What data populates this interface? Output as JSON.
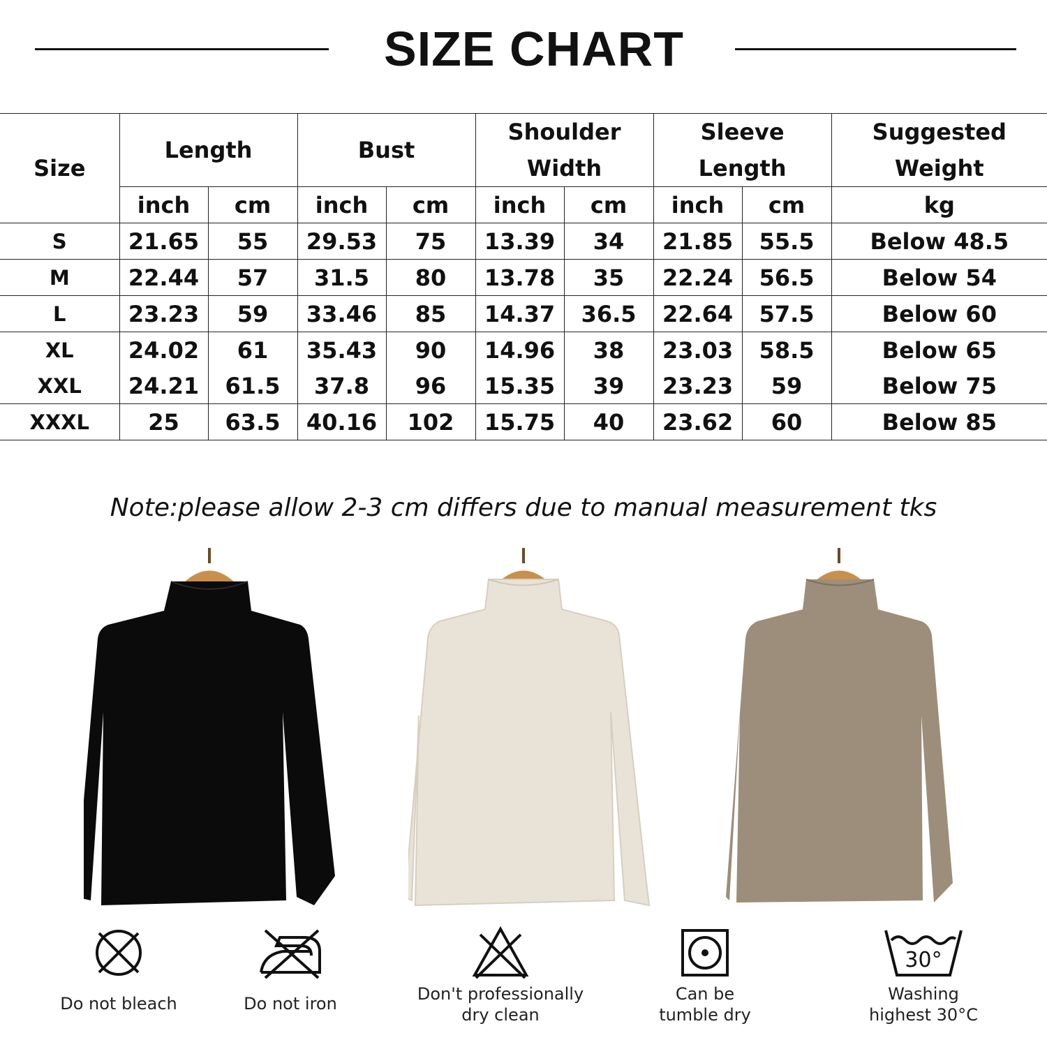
{
  "title": "SIZE CHART",
  "table": {
    "headers": {
      "size": "Size",
      "groups": [
        {
          "label": "Length",
          "units": [
            "inch",
            "cm"
          ]
        },
        {
          "label": "Bust",
          "units": [
            "inch",
            "cm"
          ]
        },
        {
          "label": "Shoulder\nWidth",
          "units": [
            "inch",
            "cm"
          ]
        },
        {
          "label": "Sleeve\nLength",
          "units": [
            "inch",
            "cm"
          ]
        }
      ],
      "weight": "Suggested\nWeight",
      "weight_unit": "kg"
    },
    "rows": [
      {
        "size": "S",
        "length_in": "21.65",
        "length_cm": "55",
        "bust_in": "29.53",
        "bust_cm": "75",
        "shoulder_in": "13.39",
        "shoulder_cm": "34",
        "sleeve_in": "21.85",
        "sleeve_cm": "55.5",
        "weight": "Below 48.5"
      },
      {
        "size": "M",
        "length_in": "22.44",
        "length_cm": "57",
        "bust_in": "31.5",
        "bust_cm": "80",
        "shoulder_in": "13.78",
        "shoulder_cm": "35",
        "sleeve_in": "22.24",
        "sleeve_cm": "56.5",
        "weight": "Below 54"
      },
      {
        "size": "L",
        "length_in": "23.23",
        "length_cm": "59",
        "bust_in": "33.46",
        "bust_cm": "85",
        "shoulder_in": "14.37",
        "shoulder_cm": "36.5",
        "sleeve_in": "22.64",
        "sleeve_cm": "57.5",
        "weight": "Below 60"
      },
      {
        "size": "XL",
        "length_in": "24.02",
        "length_cm": "61",
        "bust_in": "35.43",
        "bust_cm": "90",
        "shoulder_in": "14.96",
        "shoulder_cm": "38",
        "sleeve_in": "23.03",
        "sleeve_cm": "58.5",
        "weight": "Below 65"
      },
      {
        "size": "XXL",
        "length_in": "24.21",
        "length_cm": "61.5",
        "bust_in": "37.8",
        "bust_cm": "96",
        "shoulder_in": "15.35",
        "shoulder_cm": "39",
        "sleeve_in": "23.23",
        "sleeve_cm": "59",
        "weight": "Below 75"
      },
      {
        "size": "XXXL",
        "length_in": "25",
        "length_cm": "63.5",
        "bust_in": "40.16",
        "bust_cm": "102",
        "shoulder_in": "15.75",
        "shoulder_cm": "40",
        "sleeve_in": "23.62",
        "sleeve_cm": "60",
        "weight": "Below 85"
      }
    ]
  },
  "note": "Note:please allow 2-3 cm differs due to manual measurement tks",
  "garments": [
    {
      "icon": "black-turtleneck-image",
      "color": "#0b0b0b"
    },
    {
      "icon": "cream-turtleneck-image",
      "color": "#e9e3d7"
    },
    {
      "icon": "taupe-turtleneck-image",
      "color": "#9c8e7a"
    }
  ],
  "hanger_color": "#c98f4c",
  "care": [
    {
      "icon": "do-not-bleach-icon",
      "label": "Do not bleach"
    },
    {
      "icon": "do-not-iron-icon",
      "label": "Do not iron"
    },
    {
      "icon": "do-not-dry-clean-icon",
      "label": "Don't professionally\ndry clean"
    },
    {
      "icon": "tumble-dry-icon",
      "label": "Can be\ntumble dry"
    },
    {
      "icon": "washing-30-icon",
      "label": "Washing\nhighest 30°C",
      "temp": "30°"
    }
  ]
}
